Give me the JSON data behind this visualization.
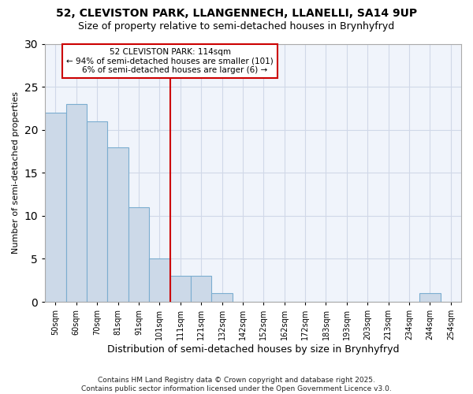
{
  "title_line1": "52, CLEVISTON PARK, LLANGENNECH, LLANELLI, SA14 9UP",
  "title_line2": "Size of property relative to semi-detached houses in Brynhyfryd",
  "xlabel": "Distribution of semi-detached houses by size in Brynhyfryd",
  "ylabel": "Number of semi-detached properties",
  "categories": [
    "50sqm",
    "60sqm",
    "70sqm",
    "81sqm",
    "91sqm",
    "101sqm",
    "111sqm",
    "121sqm",
    "132sqm",
    "142sqm",
    "152sqm",
    "162sqm",
    "172sqm",
    "183sqm",
    "193sqm",
    "203sqm",
    "213sqm",
    "234sqm",
    "244sqm",
    "254sqm"
  ],
  "values": [
    22,
    23,
    21,
    18,
    11,
    5,
    3,
    3,
    1,
    0,
    0,
    0,
    0,
    0,
    0,
    0,
    0,
    0,
    1,
    0
  ],
  "bar_color": "#ccd9e8",
  "bar_edge_color": "#7badd0",
  "vline_index": 6,
  "vline_color": "#cc0000",
  "annotation_text": "52 CLEVISTON PARK: 114sqm\n← 94% of semi-detached houses are smaller (101)\n    6% of semi-detached houses are larger (6) →",
  "ylim": [
    0,
    30
  ],
  "yticks": [
    0,
    5,
    10,
    15,
    20,
    25,
    30
  ],
  "fig_bg": "#ffffff",
  "ax_bg": "#f0f4fb",
  "grid_color": "#d0d8e8",
  "footer_line1": "Contains HM Land Registry data © Crown copyright and database right 2025.",
  "footer_line2": "Contains public sector information licensed under the Open Government Licence v3.0."
}
